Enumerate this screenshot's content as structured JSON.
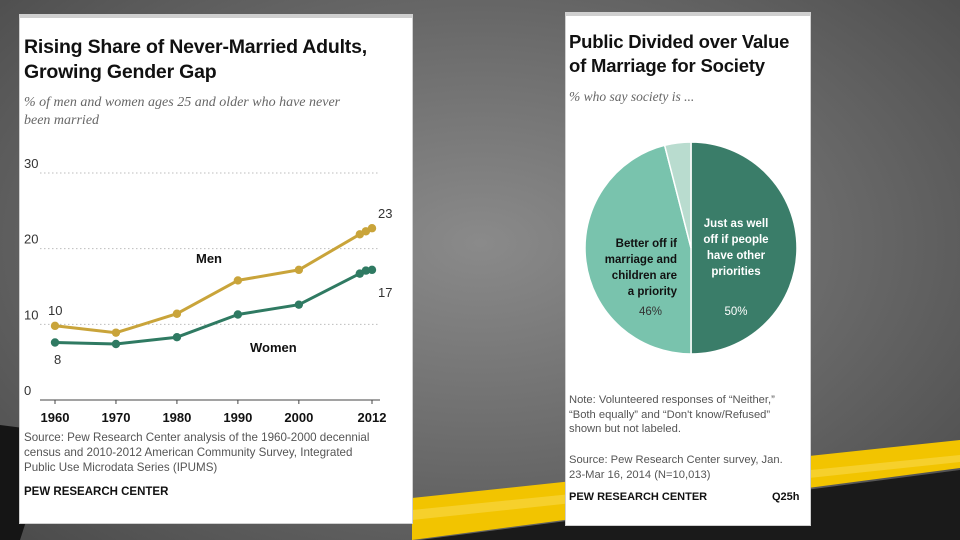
{
  "colors": {
    "men": "#c9a43a",
    "women": "#2f7a62",
    "pie_priority": "#79c3ad",
    "pie_other": "#3a7d69",
    "pie_neither": "#b9dccf",
    "accent_yellow": "#f2c400"
  },
  "left_card": {
    "title_line1": "Rising Share of Never-Married Adults,",
    "title_line2": "Growing Gender Gap",
    "subtitle_line1": "% of men and women ages 25 and older who have never",
    "subtitle_line2": "been married",
    "source_line1": "Source: Pew Research Center analysis of the 1960-2000 decennial",
    "source_line2": "census and 2010-2012 American Community Survey, Integrated",
    "source_line3": "Public Use Microdata Series (IPUMS)",
    "brand": "PEW RESEARCH CENTER"
  },
  "right_card": {
    "title_line1": "Public Divided over Value",
    "title_line2": "of Marriage for Society",
    "subtitle": "% who say society is ...",
    "note_line1": "Note: Volunteered responses of “Neither,”",
    "note_line2": "“Both equally” and “Don't know/Refused”",
    "note_line3": "shown but not labeled.",
    "source_line1": "Source: Pew Research Center survey, Jan.",
    "source_line2": "23-Mar 16, 2014 (N=10,013)",
    "brand": "PEW RESEARCH CENTER",
    "code": "Q25h"
  },
  "chart_data": [
    {
      "type": "line",
      "title": "Rising Share of Never-Married Adults, Growing Gender Gap",
      "subtitle": "% of men and women ages 25 and older who have never been married",
      "ylim": [
        0,
        30
      ],
      "yticks": [
        "0",
        "10",
        "20",
        "30"
      ],
      "xticks": [
        "1960",
        "1970",
        "1980",
        "1990",
        "2000",
        "2012"
      ],
      "xlim": [
        1960,
        2012
      ],
      "grid": true,
      "series": [
        {
          "name": "Men",
          "x": [
            1960,
            1970,
            1980,
            1990,
            2000,
            2010,
            2011,
            2012
          ],
          "values": [
            9.8,
            8.9,
            11.4,
            15.8,
            17.2,
            21.9,
            22.3,
            22.7
          ],
          "start_label": "10",
          "end_label": "23"
        },
        {
          "name": "Women",
          "x": [
            1960,
            1970,
            1980,
            1990,
            2000,
            2010,
            2011,
            2012
          ],
          "values": [
            7.6,
            7.4,
            8.3,
            11.3,
            12.6,
            16.7,
            17.1,
            17.2
          ],
          "start_label": "8",
          "end_label": "17"
        }
      ]
    },
    {
      "type": "pie",
      "title": "Public Divided over Value of Marriage for Society",
      "subtitle": "% who say society is ...",
      "slices": [
        {
          "label_lines": [
            "Just as well",
            "off if people",
            "have other",
            "priorities"
          ],
          "value": 50,
          "value_label": "50%"
        },
        {
          "label_lines": [
            "Better off if",
            "marriage and",
            "children are",
            "a priority"
          ],
          "value": 46,
          "value_label": "46%"
        },
        {
          "label_lines": [],
          "value": 4,
          "value_label": ""
        }
      ]
    }
  ]
}
